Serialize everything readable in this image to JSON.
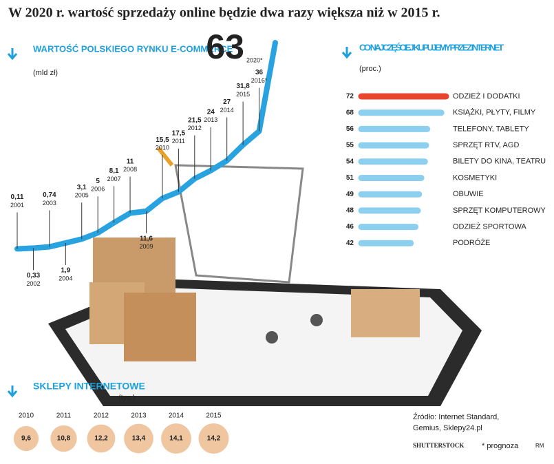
{
  "title": "W 2020 r. wartość sprzedaży online będzie dwa razy większa niż w 2015 r.",
  "chart_data": [
    {
      "type": "line",
      "title": "WARTOŚĆ POLSKIEGO RYNKU E-COMMERCE",
      "subtitle": "(mld zł)",
      "color": "#29a3e0",
      "categories": [
        "2001",
        "2002",
        "2003",
        "2004",
        "2005",
        "2006",
        "2007",
        "2008",
        "2009",
        "2010",
        "2011",
        "2012",
        "2013",
        "2014",
        "2015",
        "2016*",
        "2020*"
      ],
      "values": [
        0.11,
        0.33,
        0.74,
        1.9,
        3.1,
        5,
        8.1,
        11,
        11.6,
        15.5,
        17.5,
        21.5,
        24,
        27,
        31.8,
        36,
        63
      ],
      "value_labels": [
        "0,11",
        "0,33",
        "0,74",
        "1,9",
        "3,1",
        "5",
        "8,1",
        "11",
        "11,6",
        "15,5",
        "17,5",
        "21,5",
        "24",
        "27",
        "31,8",
        "36",
        "63"
      ]
    },
    {
      "type": "bar",
      "title": "CO NAJCZĘŚCIEJ KUPUJEMY PRZEZ INTERNET",
      "subtitle": "(proc.)",
      "categories": [
        "ODZIEŻ I DODATKI",
        "KSIĄŻKI, PŁYTY, FILMY",
        "TELEFONY, TABLETY",
        "SPRZĘT RTV, AGD",
        "BILETY DO KINA, TEATRU",
        "KOSMETYKI",
        "OBUWIE",
        "SPRZĘT KOMPUTEROWY",
        "ODZIEŻ SPORTOWA",
        "PODRÓŻE"
      ],
      "values": [
        72,
        68,
        56,
        55,
        54,
        51,
        49,
        48,
        46,
        42
      ],
      "colors": [
        "#e8452c",
        "#8ccfee",
        "#8ccfee",
        "#8ccfee",
        "#8ccfee",
        "#8ccfee",
        "#8ccfee",
        "#8ccfee",
        "#8ccfee",
        "#8ccfee"
      ]
    },
    {
      "type": "circles",
      "title": "SKLEPY INTERNETOWE",
      "subtitle": "(tys.)",
      "color": "#efc6a0",
      "categories": [
        "2010",
        "2011",
        "2012",
        "2013",
        "2014",
        "2015"
      ],
      "values": [
        9.6,
        10.8,
        12.2,
        13.4,
        14.1,
        14.2
      ],
      "value_labels": [
        "9,6",
        "10,8",
        "12,2",
        "13,4",
        "14,1",
        "14,2"
      ]
    }
  ],
  "source": [
    "Źródło: Internet Standard,",
    "Gemius, Sklepy24.pl"
  ],
  "credit": "SHUTTERSTOCK",
  "note": "* prognoza",
  "author": "RM"
}
